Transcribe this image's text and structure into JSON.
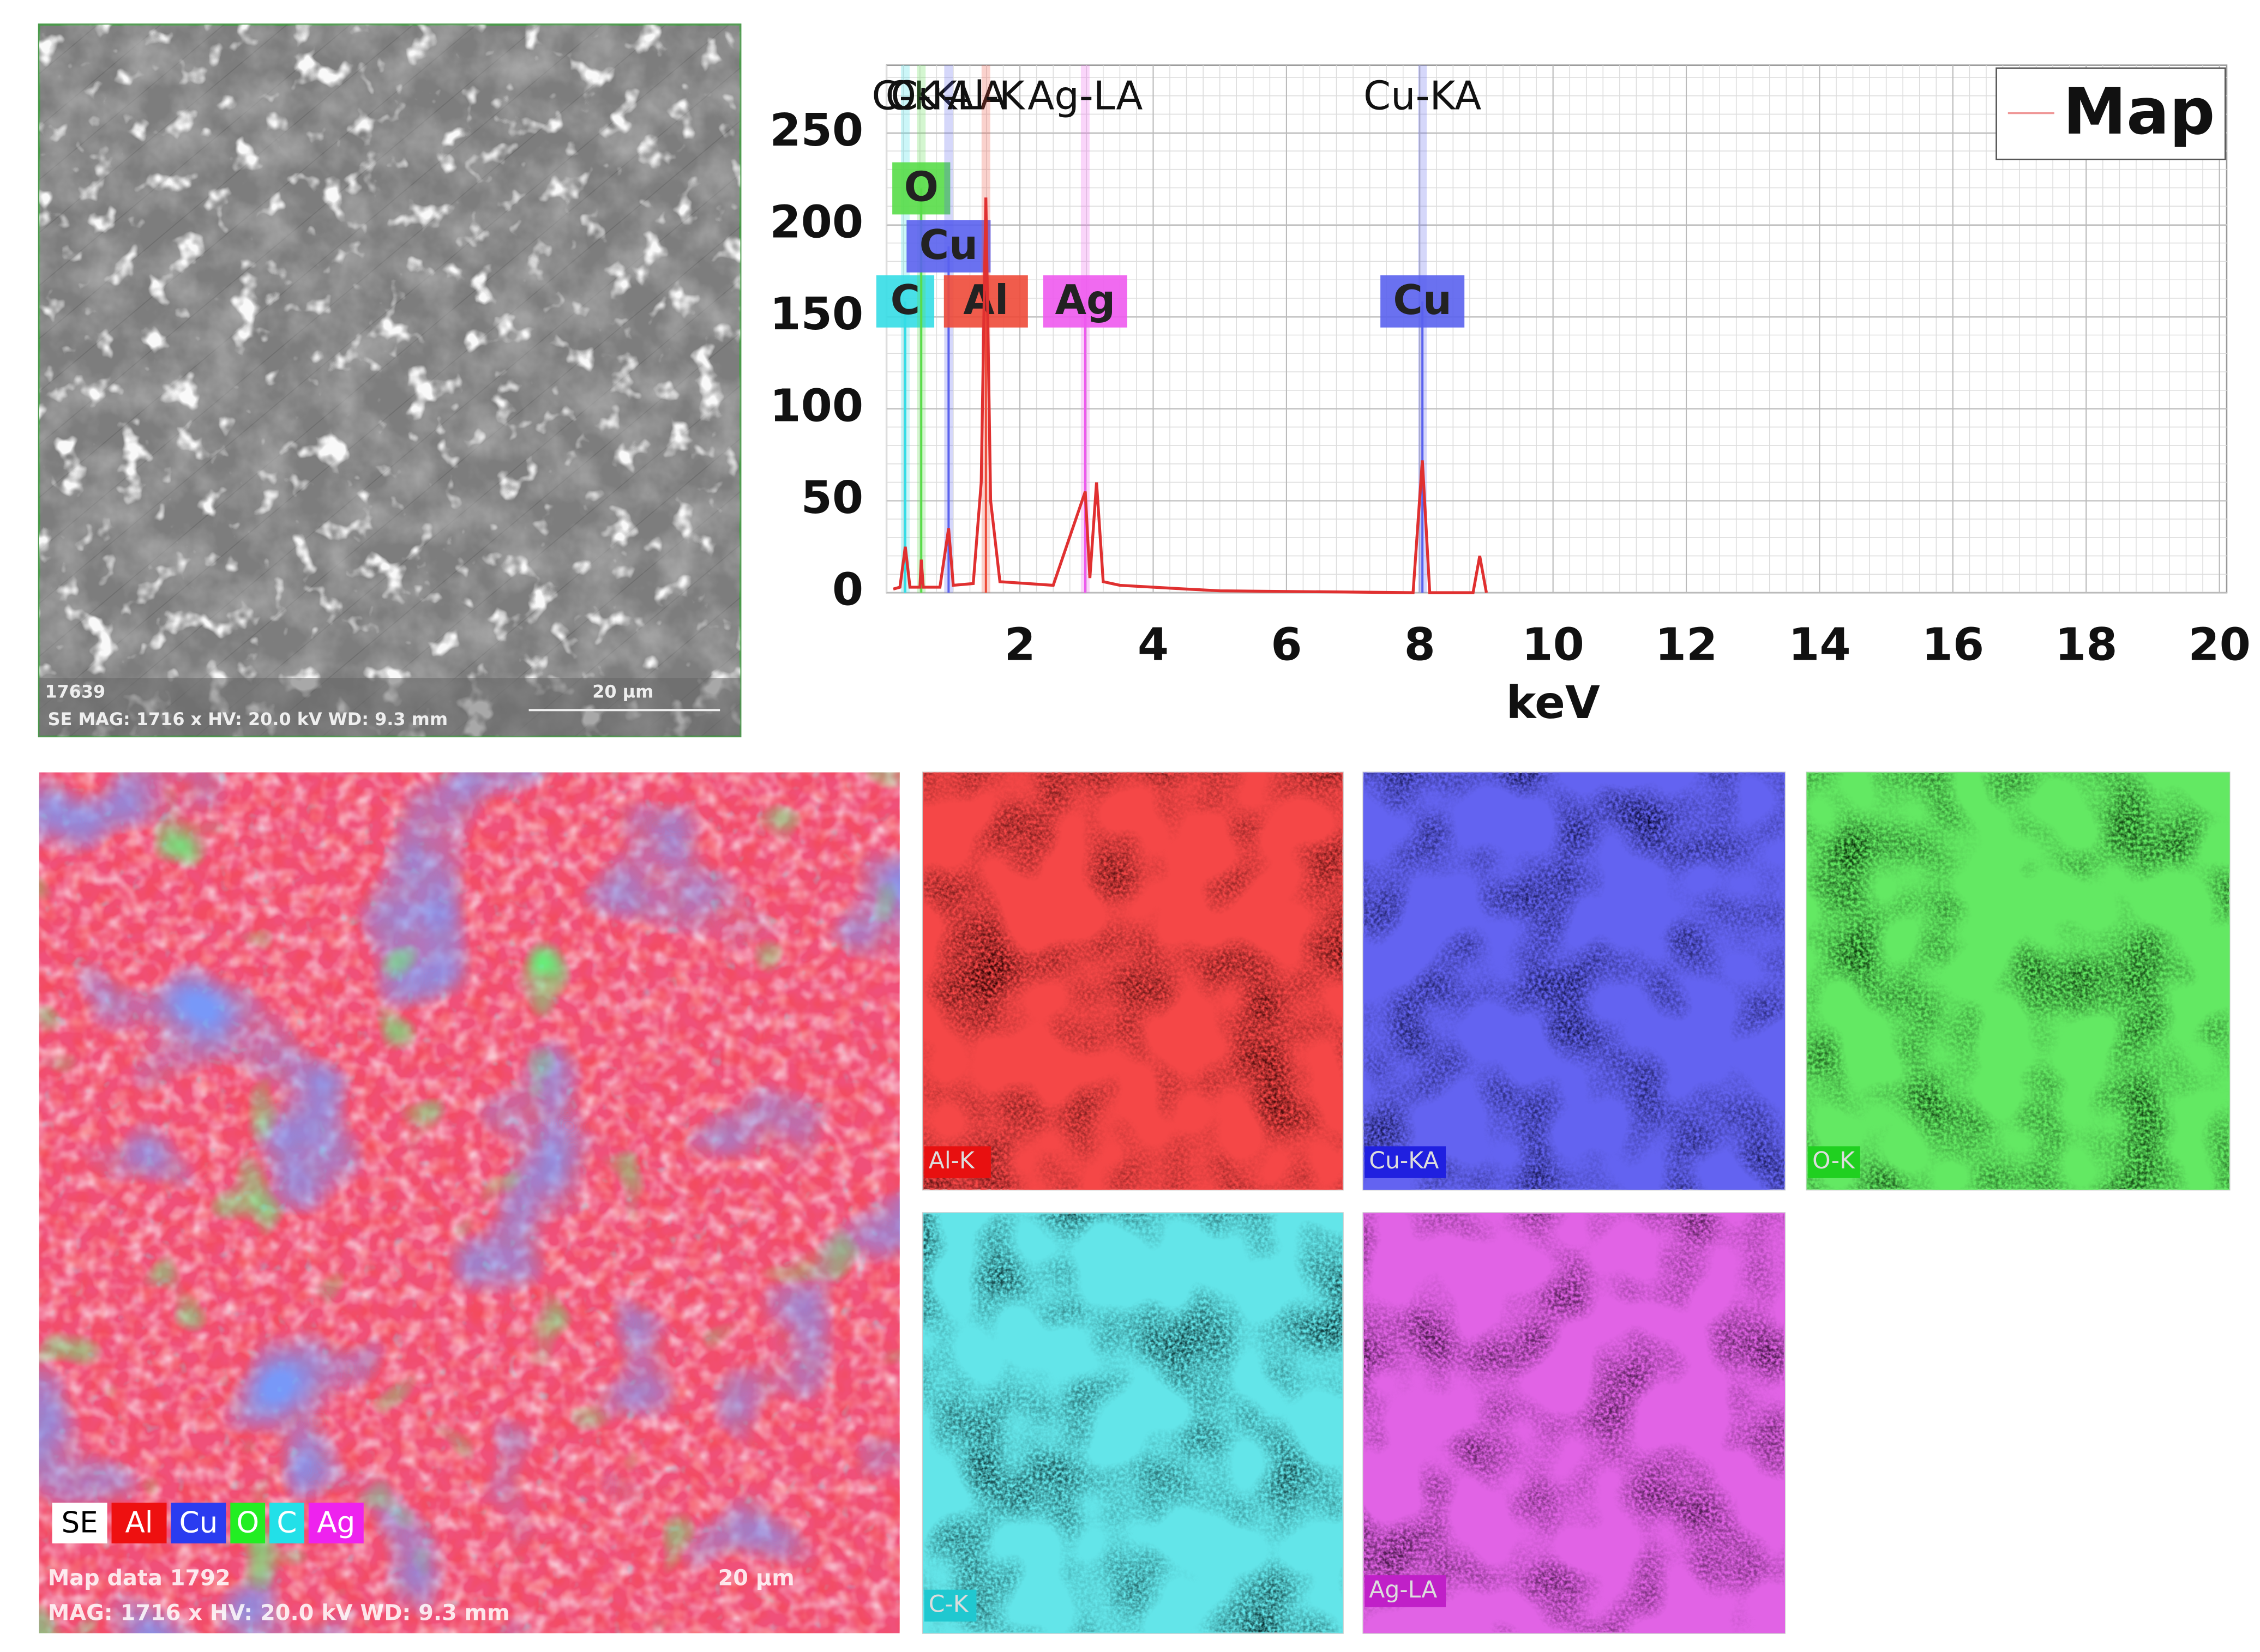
{
  "chart_data": {
    "type": "line",
    "x_label": "keV",
    "xlim": [
      0,
      20
    ],
    "ylim": [
      0,
      287
    ],
    "xticks": [
      2,
      4,
      6,
      8,
      10,
      12,
      14,
      16,
      18,
      20
    ],
    "yticks": [
      0,
      50,
      100,
      150,
      200,
      250
    ],
    "grid": true,
    "legend": "upper right",
    "series": [
      {
        "name": "Map",
        "color": "#e03030",
        "x": [
          0.1,
          0.2,
          0.28,
          0.35,
          0.5,
          0.52,
          0.55,
          0.8,
          0.93,
          1.0,
          1.3,
          1.42,
          1.49,
          1.56,
          1.7,
          2.5,
          2.98,
          3.05,
          3.15,
          3.25,
          3.5,
          4.5,
          5.0,
          7.9,
          8.04,
          8.15,
          8.8,
          8.9,
          9.0
        ],
        "values": [
          2,
          3,
          25,
          3,
          3,
          18,
          3,
          3,
          35,
          4,
          5,
          60,
          215,
          50,
          6,
          4,
          55,
          8,
          60,
          6,
          4,
          2,
          1,
          0,
          72,
          0,
          0,
          20,
          0
        ]
      }
    ],
    "peak_markers": [
      {
        "label": "C-K",
        "tag": "C",
        "energy": 0.28,
        "color": "#35dde6"
      },
      {
        "label": "O-K",
        "tag": "O",
        "energy": 0.52,
        "color": "#58dd48"
      },
      {
        "label": "Cu-LA",
        "tag": "Cu",
        "energy": 0.93,
        "color": "#5a62ee"
      },
      {
        "label": "Al-K",
        "tag": "Al",
        "energy": 1.49,
        "color": "#ee4a38"
      },
      {
        "label": "Ag-LA",
        "tag": "Ag",
        "energy": 2.98,
        "color": "#ee5aee"
      },
      {
        "label": "Cu-KA",
        "tag": "Cu",
        "energy": 8.04,
        "color": "#5a62ee"
      }
    ]
  },
  "sem_image": {
    "id": "17639",
    "info": "SE  MAG: 1716 x  HV: 20.0 kV  WD: 9.3 mm",
    "scale": "20 µm"
  },
  "composite_map": {
    "legend": [
      {
        "label": "SE",
        "color": "#ffffff"
      },
      {
        "label": "Al",
        "color": "#ee1010"
      },
      {
        "label": "Cu",
        "color": "#2a3cf0"
      },
      {
        "label": "O",
        "color": "#22ee22"
      },
      {
        "label": "C",
        "color": "#22e0e8"
      },
      {
        "label": "Ag",
        "color": "#ee22ee"
      }
    ],
    "info": [
      "Map data 1792",
      "MAG: 1716 x  HV: 20.0 kV  WD: 9.3 mm"
    ],
    "scale": "20 µm"
  },
  "element_maps": [
    {
      "label": "Al-K",
      "color": "#e81010"
    },
    {
      "label": "Cu-KA",
      "color": "#2020e0"
    },
    {
      "label": "O-K",
      "color": "#20d020"
    },
    {
      "label": "C-K",
      "color": "#20c8d0"
    },
    {
      "label": "Ag-LA",
      "color": "#c020c8"
    }
  ]
}
